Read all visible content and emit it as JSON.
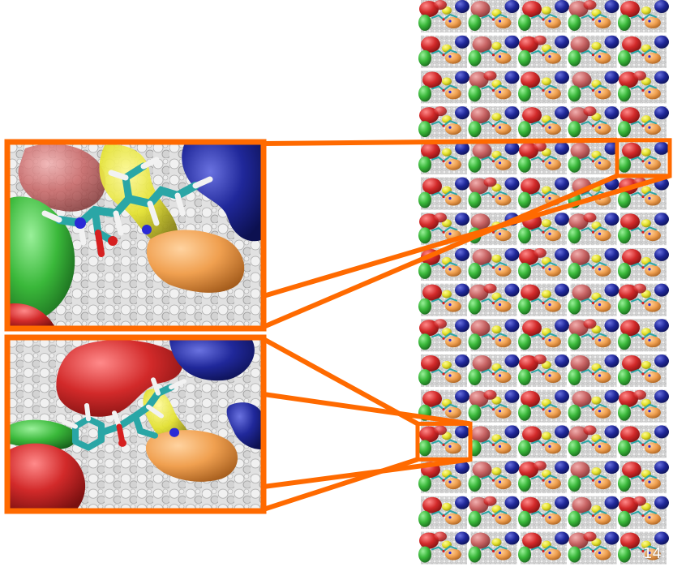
{
  "page_number": "14",
  "colors": {
    "highlight": "#ff6a00",
    "background_surface": "#e1e1e1",
    "molecule_carbon": "#2aa6a6",
    "molecule_oxygen": "#d62020",
    "molecule_nitrogen": "#2a2ad6",
    "molecule_hydrogen": "#f2f2f2",
    "sidechain_red": "#d22a2a",
    "sidechain_pink": "#d06a6a",
    "sidechain_blue": "#20289a",
    "sidechain_green": "#3ab83a",
    "sidechain_yellow": "#e4e22c",
    "sidechain_orange": "#f0a050"
  },
  "thumbnail_grid": {
    "columns": 5,
    "rows": 16
  },
  "zoomed_frames": [
    {
      "grid_row": 4,
      "grid_column": 4,
      "variant": "a"
    },
    {
      "grid_row": 12,
      "grid_column": 0,
      "variant": "b"
    }
  ]
}
